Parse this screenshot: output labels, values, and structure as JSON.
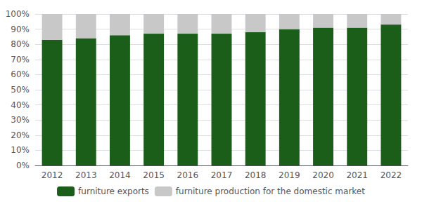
{
  "chart_data": {
    "type": "bar",
    "stacked": true,
    "categories": [
      "2012",
      "2013",
      "2014",
      "2015",
      "2016",
      "2017",
      "2018",
      "2019",
      "2020",
      "2021",
      "2022"
    ],
    "series": [
      {
        "name": "furniture exports",
        "color": "#1a5e1a",
        "values": [
          83,
          84,
          86,
          87,
          87,
          87,
          88,
          90,
          91,
          91,
          93
        ]
      },
      {
        "name": "furniture production for the domestic market",
        "color": "#c8c8c8",
        "values": [
          17,
          16,
          14,
          13,
          13,
          13,
          12,
          10,
          9,
          9,
          7
        ]
      }
    ],
    "ylim": [
      0,
      100
    ],
    "yticks": [
      {
        "value": 0,
        "label": "0%"
      },
      {
        "value": 10,
        "label": "10%"
      },
      {
        "value": 20,
        "label": "20%"
      },
      {
        "value": 30,
        "label": "30%"
      },
      {
        "value": 40,
        "label": "40%"
      },
      {
        "value": 50,
        "label": "50%"
      },
      {
        "value": 60,
        "label": "60%"
      },
      {
        "value": 70,
        "label": "70%"
      },
      {
        "value": 80,
        "label": "80%"
      },
      {
        "value": 90,
        "label": "90%"
      },
      {
        "value": 100,
        "label": "100%"
      }
    ],
    "grid": true,
    "legend": "bottom"
  }
}
